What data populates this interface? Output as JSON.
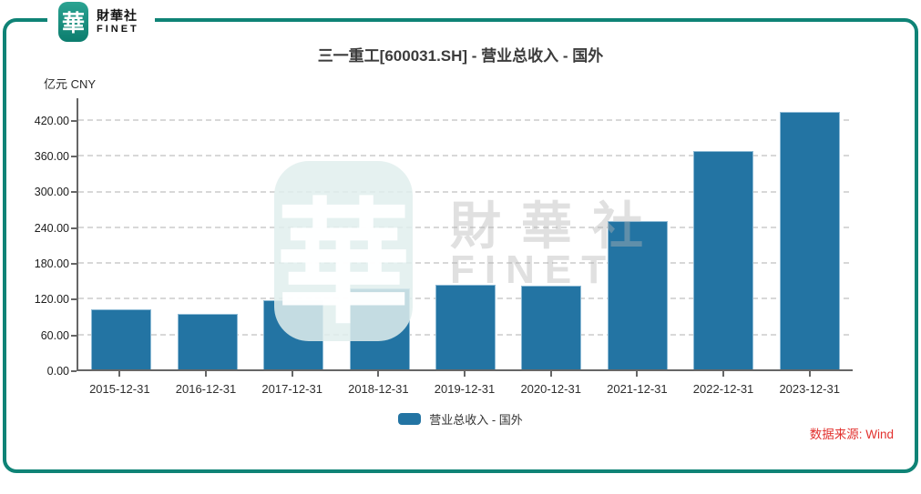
{
  "brand": {
    "logo_char": "華",
    "name_cn": "財華社",
    "name_en": "FINET"
  },
  "header": {
    "title": "三一重工[600031.SH] - 营业总收入 - 国外"
  },
  "y_axis_unit": "亿元 CNY",
  "legend": {
    "label": "营业总收入 - 国外"
  },
  "source_note": "数据来源: Wind",
  "watermark": {
    "logo_char": "華",
    "name_cn": "財華社",
    "name_en": "FINET"
  },
  "colors": {
    "bar": "#2374A3",
    "bar_edge": "#A0C7DE",
    "frame_teal": "#0F8376",
    "logo_teal_top": "#2BA392",
    "logo_teal_bottom": "#0C7D6E",
    "source_red": "#E2312E",
    "grid": "#D8D8D8",
    "axis": "#666666",
    "title_text": "#3C3C3C"
  },
  "chart_data": {
    "type": "bar",
    "title": "三一重工[600031.SH] - 营业总收入 - 国外",
    "series_name": "营业总收入 - 国外",
    "categories": [
      "2015-12-31",
      "2016-12-31",
      "2017-12-31",
      "2018-12-31",
      "2019-12-31",
      "2020-12-31",
      "2021-12-31",
      "2022-12-31",
      "2023-12-31"
    ],
    "values": [
      100.73,
      92.85,
      116.02,
      136.27,
      141.67,
      141.07,
      248.46,
      365.7,
      432.58
    ],
    "xlabel": "",
    "ylabel": "亿元 CNY",
    "unit": "亿元 (CNY)",
    "ylim": [
      0,
      458
    ],
    "yticks": [
      0,
      60,
      120,
      180,
      240,
      300,
      360,
      420
    ],
    "ytick_decimals": 2,
    "grid": "horizontal-dashed",
    "legend_position": "bottom",
    "bar_color": "#2374A3"
  }
}
